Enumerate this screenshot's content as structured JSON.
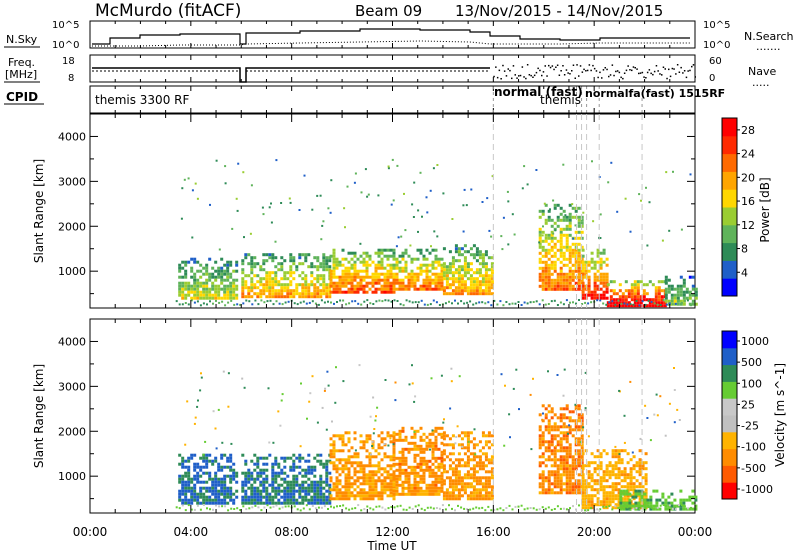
{
  "header": {
    "title": "McMurdo (fitACF)",
    "beam": "Beam 09",
    "date_range": "13/Nov/2015 - 14/Nov/2015"
  },
  "strips": {
    "nsky_label": "N.Sky",
    "nsky_ticks": [
      "10^5",
      "10^0"
    ],
    "nsearch_label": "N.Search",
    "nsearch_ticks": [
      "10^5",
      "10^0"
    ],
    "freq_label_line1": "Freq.",
    "freq_label_line2": "[MHz]",
    "freq_ticks": [
      "18",
      "8"
    ],
    "nave_label": "Nave",
    "nave_ticks": [
      "60",
      "0"
    ],
    "cpid_label": "CPID",
    "cpid_entries": [
      {
        "label": "themis 3300 RF",
        "time_h": 0.5
      },
      {
        "label": "normal (fast)",
        "time_h": 16.0
      },
      {
        "label": "themis",
        "time_h": 18.0
      }
    ],
    "cpid_overlap_text": "normalfa(fast) 1515RF"
  },
  "colors": {
    "power_scale": [
      "#0000ff",
      "#1f5fc8",
      "#2e8b57",
      "#5fb35a",
      "#9acd32",
      "#ffd700",
      "#ffa500",
      "#ff6a00",
      "#ff2a00",
      "#ff0000"
    ],
    "velocity_scale": [
      "#ff0000",
      "#ff5a00",
      "#ff8c00",
      "#ffb300",
      "#c0c0c0",
      "#c8c8c8",
      "#66cc33",
      "#2e8b57",
      "#1f5fc8",
      "#0000ff"
    ],
    "dashed_line": "#c8c8c8"
  },
  "chart_data": [
    {
      "type": "heatmap",
      "panel": "power",
      "xlabel": "",
      "ylabel": "Slant Range [km]",
      "ylim": [
        180,
        4500
      ],
      "yticks": [
        1000,
        2000,
        3000,
        4000
      ],
      "colorbar_label": "Power [dB]",
      "colorbar_range": [
        0,
        30
      ],
      "colorbar_ticks": [
        4,
        8,
        12,
        16,
        20,
        24,
        28
      ],
      "mode_change_times_h": [
        16.0,
        19.3,
        19.5,
        19.7,
        20.2,
        21.9
      ],
      "echo_regions": [
        {
          "t_start": 3.5,
          "t_end": 5.8,
          "r_min": 400,
          "r_max": 1300,
          "power_db": 14
        },
        {
          "t_start": 6.0,
          "t_end": 9.5,
          "r_min": 400,
          "r_max": 1400,
          "power_db": 18
        },
        {
          "t_start": 9.5,
          "t_end": 12.0,
          "r_min": 500,
          "r_max": 1500,
          "power_db": 22
        },
        {
          "t_start": 12.0,
          "t_end": 14.0,
          "r_min": 600,
          "r_max": 1500,
          "power_db": 20
        },
        {
          "t_start": 14.0,
          "t_end": 16.0,
          "r_min": 500,
          "r_max": 1600,
          "power_db": 18
        },
        {
          "t_start": 17.8,
          "t_end": 19.5,
          "r_min": 600,
          "r_max": 2500,
          "power_db": 20
        },
        {
          "t_start": 19.5,
          "t_end": 20.5,
          "r_min": 400,
          "r_max": 1500,
          "power_db": 24
        },
        {
          "t_start": 20.5,
          "t_end": 22.8,
          "r_min": 250,
          "r_max": 800,
          "power_db": 28
        },
        {
          "t_start": 22.8,
          "t_end": 24.0,
          "r_min": 250,
          "r_max": 900,
          "power_db": 12
        }
      ]
    },
    {
      "type": "heatmap",
      "panel": "velocity",
      "xlabel": "Time UT",
      "ylabel": "Slant Range [km]",
      "ylim": [
        180,
        4500
      ],
      "yticks": [
        1000,
        2000,
        3000,
        4000
      ],
      "colorbar_label": "Velocity [m s^-1]",
      "colorbar_ticks": [
        "1000",
        "500",
        "100",
        "25",
        "-25",
        "-100",
        "-500",
        "-1000"
      ],
      "xticks": [
        "00:00",
        "04:00",
        "08:00",
        "12:00",
        "16:00",
        "20:00",
        "00:00"
      ],
      "xlim_h": [
        0,
        24
      ],
      "mode_change_times_h": [
        16.0,
        19.3,
        19.5,
        19.7,
        20.2,
        21.9
      ],
      "echo_regions": [
        {
          "t_start": 3.5,
          "t_end": 5.8,
          "r_min": 400,
          "r_max": 1500,
          "velocity": 300
        },
        {
          "t_start": 6.0,
          "t_end": 9.5,
          "r_min": 400,
          "r_max": 1500,
          "velocity": 250
        },
        {
          "t_start": 9.5,
          "t_end": 12.0,
          "r_min": 500,
          "r_max": 2000,
          "velocity": -300
        },
        {
          "t_start": 12.0,
          "t_end": 14.0,
          "r_min": 600,
          "r_max": 2100,
          "velocity": -350
        },
        {
          "t_start": 14.0,
          "t_end": 16.0,
          "r_min": 500,
          "r_max": 2000,
          "velocity": -300
        },
        {
          "t_start": 17.8,
          "t_end": 19.5,
          "r_min": 600,
          "r_max": 2600,
          "velocity": -400
        },
        {
          "t_start": 19.5,
          "t_end": 22.0,
          "r_min": 300,
          "r_max": 1600,
          "velocity": -200
        },
        {
          "t_start": 21.0,
          "t_end": 24.0,
          "r_min": 250,
          "r_max": 700,
          "velocity": 80
        }
      ]
    }
  ]
}
